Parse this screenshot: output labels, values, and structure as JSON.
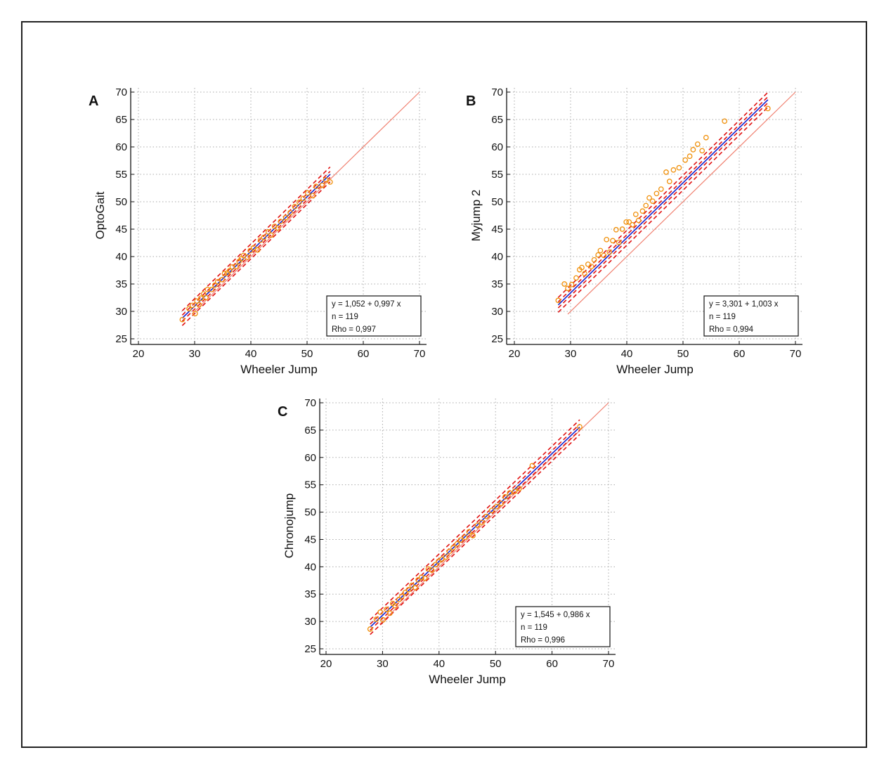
{
  "chart_data": [
    {
      "type": "scatter",
      "panel_label": "A",
      "xlabel": "Wheeler Jump",
      "ylabel": "OptoGait",
      "xlim": [
        20,
        70
      ],
      "ylim": [
        25,
        70
      ],
      "xticks": [
        "20",
        "30",
        "40",
        "50",
        "60",
        "70"
      ],
      "yticks": [
        "25",
        "30",
        "35",
        "40",
        "45",
        "50",
        "55",
        "60",
        "65",
        "70"
      ],
      "grid": true,
      "fit": {
        "intercept": 1.052,
        "slope": 0.997
      },
      "legend_lines": [
        "y  = 1,052 + 0,997 x",
        "n = 119",
        "Rho = 0,997"
      ],
      "legend_position": "bottom-right",
      "points": [
        [
          27.8,
          28.5
        ],
        [
          29.0,
          30.5
        ],
        [
          29.6,
          31.1
        ],
        [
          30.1,
          29.6
        ],
        [
          30.4,
          31.9
        ],
        [
          30.8,
          31.2
        ],
        [
          31.1,
          32.4
        ],
        [
          31.6,
          33.2
        ],
        [
          32.0,
          32.5
        ],
        [
          32.3,
          34.0
        ],
        [
          33.0,
          34.0
        ],
        [
          33.6,
          34.8
        ],
        [
          34.1,
          35.4
        ],
        [
          34.9,
          35.8
        ],
        [
          35.3,
          36.9
        ],
        [
          35.8,
          37.0
        ],
        [
          36.2,
          37.4
        ],
        [
          36.7,
          38.1
        ],
        [
          37.4,
          38.2
        ],
        [
          37.9,
          39.1
        ],
        [
          38.3,
          39.6
        ],
        [
          38.7,
          40.2
        ],
        [
          39.4,
          39.9
        ],
        [
          39.9,
          41.1
        ],
        [
          40.5,
          41.6
        ],
        [
          41.2,
          41.2
        ],
        [
          41.7,
          43.0
        ],
        [
          42.3,
          43.5
        ],
        [
          43.1,
          44.5
        ],
        [
          43.6,
          43.9
        ],
        [
          44.2,
          45.5
        ],
        [
          44.8,
          45.2
        ],
        [
          45.3,
          46.4
        ],
        [
          46.2,
          47.1
        ],
        [
          47.0,
          48.0
        ],
        [
          47.8,
          49.1
        ],
        [
          48.6,
          49.9
        ],
        [
          49.3,
          50.6
        ],
        [
          50.1,
          51.6
        ],
        [
          51.0,
          51.1
        ],
        [
          51.6,
          52.8
        ],
        [
          52.7,
          53.0
        ],
        [
          53.3,
          54.0
        ],
        [
          54.1,
          53.6
        ]
      ]
    },
    {
      "type": "scatter",
      "panel_label": "B",
      "xlabel": "Wheeler Jump",
      "ylabel": "Myjump 2",
      "xlim": [
        20,
        70
      ],
      "ylim": [
        25,
        70
      ],
      "xticks": [
        "20",
        "30",
        "40",
        "50",
        "60",
        "70"
      ],
      "yticks": [
        "25",
        "30",
        "35",
        "40",
        "45",
        "50",
        "55",
        "60",
        "65",
        "70"
      ],
      "grid": true,
      "fit": {
        "intercept": 3.301,
        "slope": 1.003
      },
      "legend_lines": [
        "y  = 3,301 + 1,003 x",
        "n = 119",
        "Rho = 0,994"
      ],
      "legend_position": "bottom-right",
      "points": [
        [
          27.8,
          32.0
        ],
        [
          28.9,
          35.0
        ],
        [
          29.5,
          34.2
        ],
        [
          30.2,
          34.9
        ],
        [
          31.0,
          36.1
        ],
        [
          31.6,
          37.6
        ],
        [
          32.0,
          38.0
        ],
        [
          32.5,
          36.9
        ],
        [
          33.1,
          38.6
        ],
        [
          33.7,
          38.2
        ],
        [
          34.2,
          39.4
        ],
        [
          34.9,
          40.3
        ],
        [
          35.3,
          41.1
        ],
        [
          35.9,
          40.2
        ],
        [
          36.4,
          43.1
        ],
        [
          36.9,
          40.8
        ],
        [
          37.5,
          42.9
        ],
        [
          38.1,
          44.9
        ],
        [
          38.6,
          42.6
        ],
        [
          39.2,
          45.0
        ],
        [
          39.9,
          46.3
        ],
        [
          40.4,
          46.3
        ],
        [
          41.0,
          45.8
        ],
        [
          41.6,
          47.7
        ],
        [
          42.1,
          46.6
        ],
        [
          42.8,
          48.3
        ],
        [
          43.4,
          49.3
        ],
        [
          44.0,
          50.7
        ],
        [
          44.6,
          50.1
        ],
        [
          45.3,
          51.5
        ],
        [
          46.1,
          52.3
        ],
        [
          47.0,
          55.4
        ],
        [
          47.6,
          53.7
        ],
        [
          48.3,
          55.8
        ],
        [
          49.3,
          56.2
        ],
        [
          50.4,
          57.6
        ],
        [
          51.2,
          58.3
        ],
        [
          51.8,
          59.5
        ],
        [
          52.6,
          60.5
        ],
        [
          53.4,
          59.3
        ],
        [
          54.1,
          61.7
        ],
        [
          57.4,
          64.7
        ],
        [
          65.1,
          67.0
        ]
      ]
    },
    {
      "type": "scatter",
      "panel_label": "C",
      "xlabel": "Wheeler Jump",
      "ylabel": "Chronojump",
      "xlim": [
        20,
        70
      ],
      "ylim": [
        25,
        70
      ],
      "xticks": [
        "20",
        "30",
        "40",
        "50",
        "60",
        "70"
      ],
      "yticks": [
        "25",
        "30",
        "35",
        "40",
        "45",
        "50",
        "55",
        "60",
        "65",
        "70"
      ],
      "grid": true,
      "fit": {
        "intercept": 1.545,
        "slope": 0.986
      },
      "legend_lines": [
        "y  = 1,545 + 0,986 x",
        "n = 119",
        "Rho = 0,996"
      ],
      "legend_position": "bottom-right",
      "points": [
        [
          27.8,
          28.6
        ],
        [
          28.9,
          30.4
        ],
        [
          29.6,
          31.7
        ],
        [
          30.1,
          30.3
        ],
        [
          30.7,
          32.2
        ],
        [
          31.3,
          31.5
        ],
        [
          31.8,
          33.3
        ],
        [
          32.2,
          32.9
        ],
        [
          32.9,
          34.0
        ],
        [
          33.4,
          34.6
        ],
        [
          34.0,
          35.3
        ],
        [
          34.6,
          35.8
        ],
        [
          35.2,
          36.6
        ],
        [
          35.8,
          36.2
        ],
        [
          36.3,
          37.6
        ],
        [
          36.9,
          38.1
        ],
        [
          37.5,
          37.9
        ],
        [
          38.1,
          39.6
        ],
        [
          38.7,
          39.4
        ],
        [
          39.4,
          40.4
        ],
        [
          39.9,
          41.0
        ],
        [
          40.5,
          41.4
        ],
        [
          41.2,
          41.8
        ],
        [
          41.8,
          42.8
        ],
        [
          42.5,
          43.5
        ],
        [
          43.2,
          44.2
        ],
        [
          43.8,
          44.9
        ],
        [
          44.6,
          45.4
        ],
        [
          45.3,
          46.4
        ],
        [
          46.0,
          45.7
        ],
        [
          46.8,
          47.6
        ],
        [
          47.6,
          48.1
        ],
        [
          48.4,
          49.2
        ],
        [
          49.3,
          50.3
        ],
        [
          50.2,
          51.0
        ],
        [
          51.0,
          51.6
        ],
        [
          51.7,
          52.8
        ],
        [
          52.5,
          53.5
        ],
        [
          53.4,
          53.8
        ],
        [
          54.2,
          54.3
        ],
        [
          56.5,
          58.5
        ],
        [
          64.9,
          65.6
        ]
      ]
    }
  ]
}
